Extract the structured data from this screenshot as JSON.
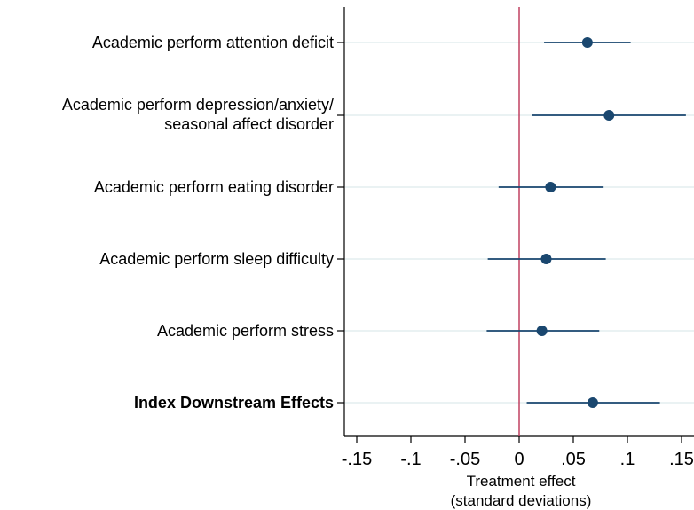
{
  "chart_data": {
    "type": "coefficient-plot",
    "xlabel": [
      "Treatment effect",
      "(standard deviations)"
    ],
    "xlim": [
      -0.15,
      0.15
    ],
    "xticks": [
      -0.15,
      -0.1,
      -0.05,
      0,
      0.05,
      0.1,
      0.15
    ],
    "xtick_labels": [
      "-.15",
      "-.1",
      "-.05",
      "0",
      ".05",
      ".1",
      ".15"
    ],
    "reference_line": 0,
    "grid": true,
    "colors": {
      "point": "#1a476f",
      "ci": "#1a476f",
      "reference": "#c04060",
      "grid": "#eaf2f3"
    },
    "rows": [
      {
        "label": [
          "Academic perform attention deficit"
        ],
        "bold": false,
        "estimate": 0.063,
        "ci": [
          0.023,
          0.103
        ]
      },
      {
        "label": [
          "Academic perform depression/anxiety/",
          "seasonal affect disorder"
        ],
        "bold": false,
        "estimate": 0.083,
        "ci": [
          0.012,
          0.154
        ]
      },
      {
        "label": [
          "Academic perform eating disorder"
        ],
        "bold": false,
        "estimate": 0.029,
        "ci": [
          -0.019,
          0.078
        ]
      },
      {
        "label": [
          "Academic perform sleep difficulty"
        ],
        "bold": false,
        "estimate": 0.025,
        "ci": [
          -0.029,
          0.08
        ]
      },
      {
        "label": [
          "Academic perform stress"
        ],
        "bold": false,
        "estimate": 0.021,
        "ci": [
          -0.03,
          0.074
        ]
      },
      {
        "label": [
          "Index Downstream Effects"
        ],
        "bold": true,
        "estimate": 0.068,
        "ci": [
          0.007,
          0.13
        ]
      }
    ]
  }
}
